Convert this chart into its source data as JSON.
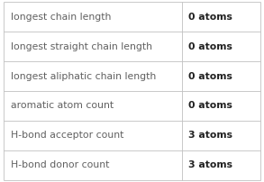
{
  "rows": [
    [
      "longest chain length",
      "0 atoms"
    ],
    [
      "longest straight chain length",
      "0 atoms"
    ],
    [
      "longest aliphatic chain length",
      "0 atoms"
    ],
    [
      "aromatic atom count",
      "0 atoms"
    ],
    [
      "H-bond acceptor count",
      "3 atoms"
    ],
    [
      "H-bond donor count",
      "3 atoms"
    ]
  ],
  "col_split": 0.695,
  "bg_color": "#ffffff",
  "border_color": "#c0c0c0",
  "text_color_left": "#606060",
  "text_color_right": "#202020",
  "font_size": 7.8,
  "fig_width": 2.93,
  "fig_height": 2.02,
  "dpi": 100
}
